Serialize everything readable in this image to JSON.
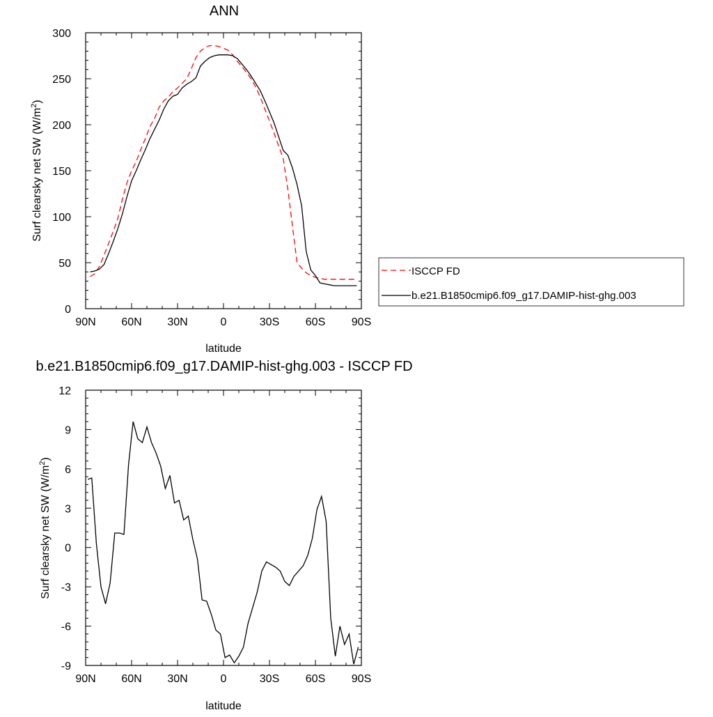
{
  "chart_data": [
    {
      "type": "line",
      "title": "ANN",
      "xlabel": "latitude",
      "ylabel": "Surf clearsky net SW (W/m",
      "ylabel_sup": "2",
      "ylabel_close": ")",
      "xlim": [
        90,
        -90
      ],
      "ylim": [
        0,
        300
      ],
      "x_ticks": [
        {
          "v": 90,
          "label": "90N"
        },
        {
          "v": 60,
          "label": "60N"
        },
        {
          "v": 30,
          "label": "30N"
        },
        {
          "v": 0,
          "label": "0"
        },
        {
          "v": -30,
          "label": "30S"
        },
        {
          "v": -60,
          "label": "60S"
        },
        {
          "v": -90,
          "label": "90S"
        }
      ],
      "y_ticks": [
        {
          "v": 0,
          "label": "0"
        },
        {
          "v": 50,
          "label": "50"
        },
        {
          "v": 100,
          "label": "100"
        },
        {
          "v": 150,
          "label": "150"
        },
        {
          "v": 200,
          "label": "200"
        },
        {
          "v": 250,
          "label": "250"
        },
        {
          "v": 300,
          "label": "300"
        }
      ],
      "legend_position": "right",
      "series": [
        {
          "name": "ISCCP FD",
          "color": "#ff0000",
          "dash": "8,5",
          "x": [
            87,
            84,
            81,
            78,
            75,
            72,
            69,
            66,
            63,
            60,
            57,
            54,
            51,
            48,
            45,
            42,
            39,
            36,
            33,
            30,
            27,
            24,
            21,
            18,
            15,
            12,
            9,
            6,
            3,
            0,
            -3,
            -6,
            -9,
            -12,
            -15,
            -18,
            -21,
            -24,
            -27,
            -30,
            -33,
            -36,
            -39,
            -42,
            -45,
            -48,
            -51,
            -54,
            -57,
            -60,
            -63,
            -66,
            -69,
            -72,
            -75,
            -78,
            -81,
            -84,
            -87
          ],
          "y": [
            35,
            38,
            46,
            58,
            71,
            84,
            98,
            119,
            137,
            150,
            160,
            173,
            185,
            198,
            207,
            219,
            226,
            230,
            236,
            240,
            245,
            250,
            261,
            273,
            280,
            284,
            286,
            286,
            285,
            283,
            281,
            276,
            269,
            263,
            257,
            250,
            241,
            230,
            217,
            204,
            191,
            177,
            163,
            130,
            90,
            50,
            44,
            39,
            36,
            34,
            33,
            32,
            32,
            32,
            32,
            32,
            32,
            32,
            32
          ]
        },
        {
          "name": "b.e21.B1850cmip6.f09_g17.DAMIP-hist-ghg.003",
          "color": "#000000",
          "dash": "",
          "x": [
            87,
            84,
            81,
            78,
            75,
            72,
            69,
            66,
            63,
            60,
            57,
            54,
            51,
            48,
            45,
            42,
            39,
            36,
            33,
            30,
            27,
            24,
            21,
            18,
            15,
            12,
            9,
            6,
            3,
            0,
            -3,
            -6,
            -9,
            -12,
            -15,
            -18,
            -21,
            -24,
            -27,
            -30,
            -33,
            -36,
            -39,
            -42,
            -45,
            -48,
            -51,
            -54,
            -57,
            -60,
            -63,
            -66,
            -69,
            -72,
            -75,
            -78,
            -81,
            -84,
            -87
          ],
          "y": [
            40,
            41,
            43,
            48,
            60,
            73,
            87,
            103,
            122,
            139,
            150,
            162,
            173,
            185,
            195,
            205,
            217,
            226,
            231,
            233,
            240,
            244,
            247,
            251,
            264,
            269,
            273,
            275,
            276,
            276,
            276,
            275,
            272,
            266,
            260,
            253,
            245,
            237,
            226,
            214,
            202,
            187,
            172,
            167,
            153,
            135,
            112,
            62,
            42,
            36,
            28,
            27,
            26,
            25,
            25,
            25,
            25,
            25,
            25
          ]
        }
      ]
    },
    {
      "type": "line",
      "title": "b.e21.B1850cmip6.f09_g17.DAMIP-hist-ghg.003 - ISCCP FD",
      "xlabel": "latitude",
      "ylabel": "Surf clearsky net SW (W/m",
      "ylabel_sup": "2",
      "ylabel_close": ")",
      "xlim": [
        90,
        -90
      ],
      "ylim": [
        -9,
        12
      ],
      "x_ticks": [
        {
          "v": 90,
          "label": "90N"
        },
        {
          "v": 60,
          "label": "60N"
        },
        {
          "v": 30,
          "label": "30N"
        },
        {
          "v": 0,
          "label": "0"
        },
        {
          "v": -30,
          "label": "30S"
        },
        {
          "v": -60,
          "label": "60S"
        },
        {
          "v": -90,
          "label": "90S"
        }
      ],
      "y_ticks": [
        {
          "v": -9,
          "label": "-9"
        },
        {
          "v": -6,
          "label": "-6"
        },
        {
          "v": -3,
          "label": "-3"
        },
        {
          "v": 0,
          "label": "0"
        },
        {
          "v": 3,
          "label": "3"
        },
        {
          "v": 6,
          "label": "6"
        },
        {
          "v": 9,
          "label": "9"
        },
        {
          "v": 12,
          "label": "12"
        }
      ],
      "series": [
        {
          "name": "",
          "color": "#000000",
          "dash": "",
          "x": [
            88.5,
            86,
            83,
            80,
            77,
            74,
            71,
            68,
            65,
            62,
            59,
            56,
            53,
            50,
            47,
            44,
            41,
            38,
            35,
            32,
            29,
            26,
            23,
            20,
            17,
            14,
            11,
            8,
            5,
            2,
            -1,
            -4,
            -7,
            -10,
            -13,
            -16,
            -19,
            -22,
            -25,
            -28,
            -31,
            -34,
            -37,
            -40,
            -43,
            -46,
            -49,
            -52,
            -55,
            -58,
            -61,
            -64,
            -67,
            -70,
            -73,
            -76,
            -79,
            -82,
            -85,
            -88
          ],
          "y": [
            5.2,
            5.3,
            0.3,
            -3.0,
            -4.3,
            -2.7,
            1.1,
            1.1,
            1.0,
            6.3,
            9.6,
            8.3,
            8.0,
            9.2,
            8.0,
            7.2,
            6.2,
            4.5,
            5.5,
            3.4,
            3.6,
            2.1,
            2.4,
            0.6,
            -0.9,
            -4.0,
            -4.1,
            -5.1,
            -6.3,
            -6.6,
            -8.4,
            -8.2,
            -8.8,
            -8.3,
            -7.6,
            -5.8,
            -4.6,
            -3.4,
            -1.8,
            -1.1,
            -1.3,
            -1.5,
            -1.8,
            -2.6,
            -2.9,
            -2.2,
            -1.8,
            -1.4,
            -0.6,
            0.7,
            2.9,
            3.9,
            2.0,
            -5.4,
            -8.3,
            -6.0,
            -7.4,
            -6.6,
            -8.9,
            -7.6
          ]
        }
      ]
    }
  ]
}
